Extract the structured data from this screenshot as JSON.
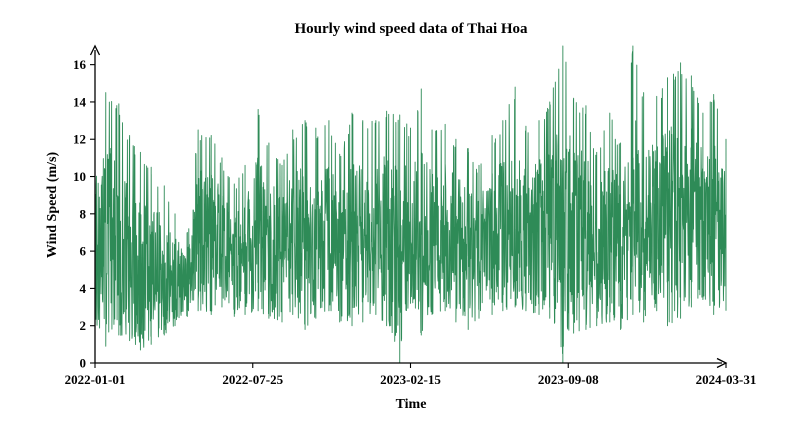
{
  "chart_data": {
    "type": "line",
    "title": "Hourly wind speed data of Thai Hoa",
    "xlabel": "Time",
    "ylabel": "Wind Speed (m/s)",
    "x_range": [
      "2022-01-01",
      "2024-03-31"
    ],
    "x_ticks": [
      "2022-01-01",
      "2022-07-25",
      "2023-02-15",
      "2023-09-08",
      "2024-03-31"
    ],
    "y_ticks": [
      0,
      2,
      4,
      6,
      8,
      10,
      12,
      14,
      16
    ],
    "ylim": [
      0,
      17
    ],
    "grid": false,
    "colors": {
      "series": "#2e8b57",
      "axis": "#000000"
    },
    "series": [
      {
        "x": [
          "2022-01-01",
          "2022-01-15",
          "2022-02-01",
          "2022-02-15",
          "2022-03-01",
          "2022-03-15",
          "2022-04-01",
          "2022-04-15",
          "2022-05-01",
          "2022-05-15",
          "2022-06-01",
          "2022-06-15",
          "2022-07-01",
          "2022-07-15",
          "2022-08-01",
          "2022-08-15",
          "2022-09-01",
          "2022-09-15",
          "2022-10-01",
          "2022-10-15",
          "2022-11-01",
          "2022-11-15",
          "2022-12-01",
          "2022-12-15",
          "2023-01-01",
          "2023-01-15",
          "2023-02-01",
          "2023-02-15",
          "2023-03-01",
          "2023-03-15",
          "2023-04-01",
          "2023-04-15",
          "2023-05-01",
          "2023-05-15",
          "2023-06-01",
          "2023-06-15",
          "2023-07-01",
          "2023-07-15",
          "2023-08-01",
          "2023-08-15",
          "2023-09-01",
          "2023-09-15",
          "2023-10-01",
          "2023-10-15",
          "2023-11-01",
          "2023-11-15",
          "2023-12-01",
          "2023-12-15",
          "2024-01-01",
          "2024-01-15",
          "2024-02-01",
          "2024-02-15",
          "2024-03-01",
          "2024-03-15",
          "2024-03-31"
        ],
        "low": [
          1.4,
          0.9,
          1.5,
          1.2,
          0.7,
          1.0,
          1.5,
          2.0,
          2.5,
          2.8,
          2.6,
          3.0,
          2.5,
          2.6,
          2.8,
          2.4,
          2.2,
          2.6,
          1.8,
          2.4,
          2.8,
          2.2,
          2.0,
          2.2,
          2.6,
          2.0,
          0.0,
          3.2,
          1.5,
          2.6,
          2.8,
          2.2,
          1.8,
          2.4,
          2.6,
          2.8,
          3.0,
          2.8,
          2.6,
          2.4,
          0.0,
          1.6,
          1.8,
          2.0,
          2.2,
          1.8,
          2.6,
          2.2,
          2.8,
          2.0,
          2.4,
          3.0,
          3.4,
          2.6,
          2.8
        ],
        "high": [
          12.2,
          14.5,
          13.9,
          12.2,
          11.3,
          10.5,
          9.5,
          8.0,
          7.0,
          12.5,
          12.2,
          11.0,
          9.6,
          10.6,
          13.6,
          11.8,
          10.6,
          12.5,
          13.0,
          12.6,
          13.0,
          11.2,
          13.4,
          13.0,
          13.0,
          13.5,
          13.3,
          12.6,
          14.7,
          12.5,
          12.8,
          12.0,
          11.5,
          10.6,
          12.2,
          13.0,
          14.8,
          12.7,
          13.0,
          14.0,
          17.0,
          14.2,
          13.8,
          11.3,
          13.4,
          11.8,
          17.0,
          14.5,
          14.3,
          15.3,
          16.1,
          15.4,
          13.4,
          14.4,
          12.0
        ]
      }
    ]
  }
}
